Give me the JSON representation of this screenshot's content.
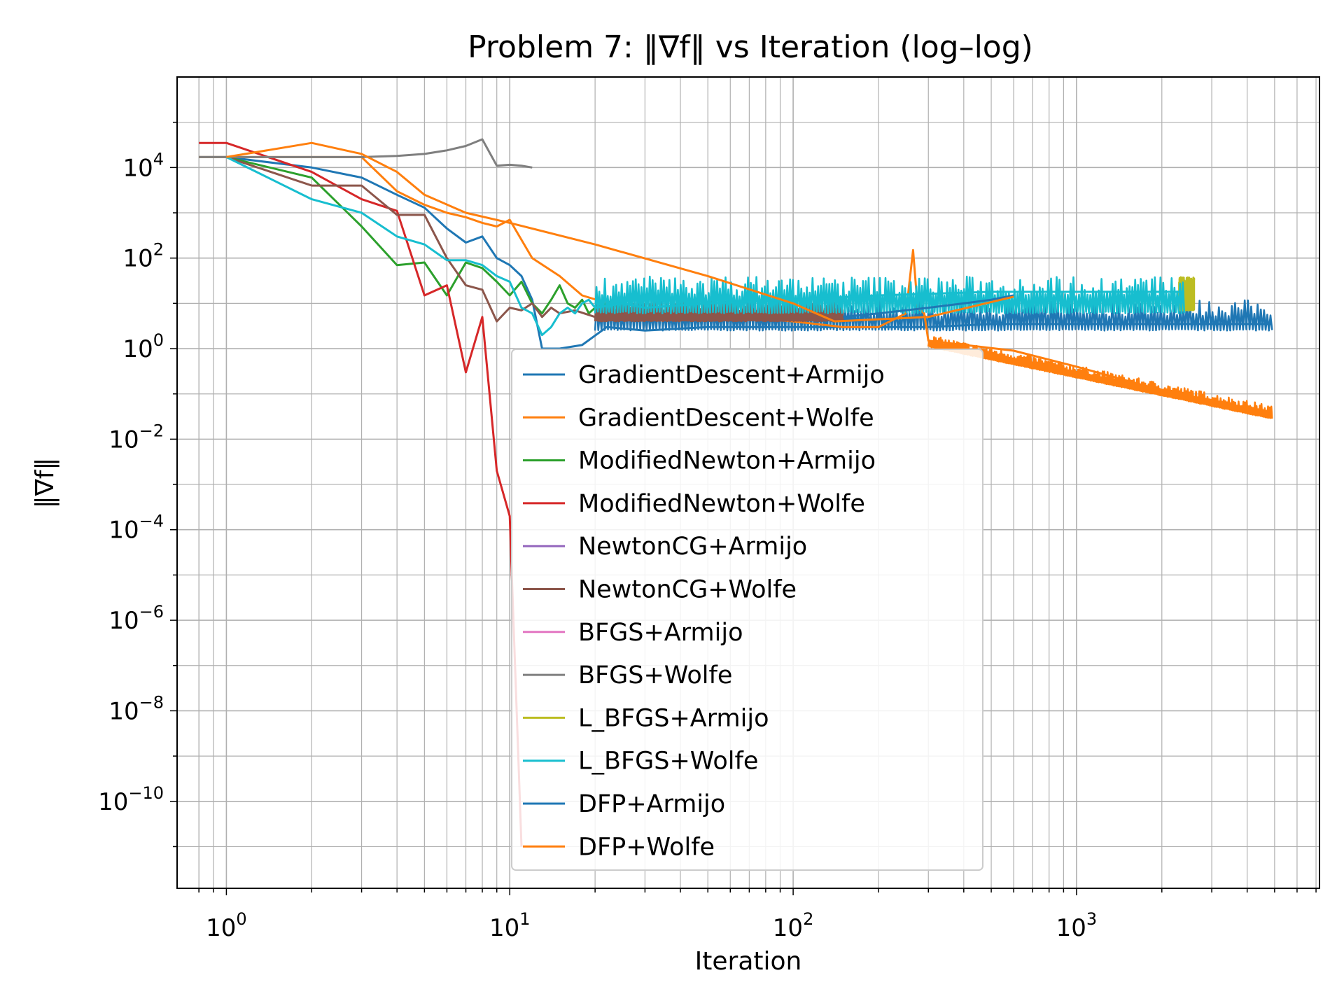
{
  "chart_data": {
    "type": "line",
    "title": "Problem 7: ‖∇f‖ vs Iteration (log–log)",
    "xlabel": "Iteration",
    "ylabel": "‖∇f‖",
    "xscale": "log",
    "yscale": "log",
    "xlim": [
      0.67,
      7200
    ],
    "ylim": [
      1.2e-12,
      1000000.0
    ],
    "grid": "on (major and minor)",
    "legend_placement": "center",
    "x_ticks": [
      {
        "value": 1,
        "base": "10",
        "exp": "0"
      },
      {
        "value": 10,
        "base": "10",
        "exp": "1"
      },
      {
        "value": 100,
        "base": "10",
        "exp": "2"
      },
      {
        "value": 1000,
        "base": "10",
        "exp": "3"
      }
    ],
    "y_ticks": [
      {
        "value": 10000.0,
        "base": "10",
        "exp": "4"
      },
      {
        "value": 100.0,
        "base": "10",
        "exp": "2"
      },
      {
        "value": 1,
        "base": "10",
        "exp": "0"
      },
      {
        "value": 0.01,
        "base": "10",
        "exp": "−2"
      },
      {
        "value": 0.0001,
        "base": "10",
        "exp": "−4"
      },
      {
        "value": 1e-06,
        "base": "10",
        "exp": "−6"
      },
      {
        "value": 1e-08,
        "base": "10",
        "exp": "−8"
      },
      {
        "value": 1e-10,
        "base": "10",
        "exp": "−10"
      }
    ],
    "series": [
      {
        "name": "GradientDescent+Armijo",
        "color": "#1f77b4",
        "x": [
          0,
          1,
          2,
          3,
          4,
          5,
          6,
          7,
          8,
          9,
          10,
          11,
          12,
          13,
          15,
          18,
          22,
          30,
          50,
          100,
          200,
          300,
          500,
          1000,
          2000,
          4900
        ],
        "y": [
          17000,
          17000,
          10000,
          6000,
          2500,
          1300,
          450,
          220,
          300,
          100,
          70,
          40,
          12,
          1,
          1,
          1.2,
          3,
          2.5,
          3,
          3,
          3,
          3,
          3.5,
          3.5,
          3.5,
          3.5
        ],
        "band": {
          "x_start": 20,
          "x_end": 4900,
          "low": 2.5,
          "high": 12
        }
      },
      {
        "name": "GradientDescent+Wolfe",
        "color": "#ff7f0e",
        "x": [
          0,
          1,
          2,
          3,
          4,
          5,
          6,
          7,
          8,
          9,
          10,
          12,
          15,
          18,
          25,
          40,
          100,
          150,
          200,
          250,
          265,
          275,
          290,
          300,
          600,
          1000,
          2000,
          4900
        ],
        "y": [
          17000,
          17000,
          17000,
          17000,
          3000,
          1500,
          1000,
          800,
          600,
          500,
          700,
          100,
          40,
          15,
          8,
          6,
          4,
          3,
          3,
          6,
          150,
          8,
          6,
          1.5,
          0.9,
          0.4,
          0.12,
          0.035
        ],
        "band": {
          "x_start": 300,
          "x_end": 4900,
          "low_start": 1.1,
          "high_start": 2.0,
          "low_end": 0.028,
          "high_end": 0.055
        }
      },
      {
        "name": "ModifiedNewton+Armijo",
        "color": "#2ca02c",
        "x": [
          1,
          2,
          3,
          4,
          5,
          6,
          7,
          8,
          9,
          10,
          11,
          12,
          13,
          14,
          15,
          16,
          17,
          18,
          19,
          20,
          22,
          25
        ],
        "y": [
          17000,
          6000,
          500,
          70,
          80,
          15,
          80,
          60,
          30,
          15,
          30,
          10,
          6,
          12,
          25,
          10,
          8,
          12,
          6,
          8,
          10,
          8
        ]
      },
      {
        "name": "ModifiedNewton+Wolfe",
        "color": "#d62728",
        "x": [
          0,
          1,
          2,
          3,
          4,
          5,
          6,
          7,
          8,
          9,
          10,
          11
        ],
        "y": [
          35000,
          35000,
          8000,
          2000,
          1100,
          15,
          25,
          0.3,
          5,
          0.002,
          0.0002,
          1e-11
        ]
      },
      {
        "name": "NewtonCG+Armijo",
        "color": "#9467bd",
        "x": [],
        "y": []
      },
      {
        "name": "NewtonCG+Wolfe",
        "color": "#8c564b",
        "x": [
          1,
          2,
          3,
          4,
          5,
          6,
          7,
          8,
          9,
          10,
          11,
          12,
          13,
          14,
          15,
          17,
          20,
          25,
          30,
          40,
          60,
          100,
          150
        ],
        "y": [
          17000,
          4000,
          4000,
          900,
          900,
          100,
          25,
          20,
          4,
          8,
          7,
          10,
          5,
          8,
          6,
          7,
          5,
          8,
          6,
          6,
          5,
          5,
          5
        ],
        "band": {
          "x_start": 20,
          "x_end": 150,
          "low": 4,
          "high": 12
        }
      },
      {
        "name": "BFGS+Armijo",
        "color": "#e377c2",
        "x": [],
        "y": []
      },
      {
        "name": "BFGS+Wolfe",
        "color": "#7f7f7f",
        "x": [
          0,
          1,
          2,
          3,
          4,
          5,
          6,
          7,
          8,
          9,
          10,
          11,
          12
        ],
        "y": [
          17000,
          17000,
          17000,
          17000,
          18000,
          20000,
          24000,
          30000,
          42000,
          11000,
          11500,
          11000,
          10000
        ]
      },
      {
        "name": "L_BFGS+Armijo",
        "color": "#bcbd22",
        "x": [
          2300,
          2400,
          2500,
          2600
        ],
        "y": [
          15,
          30,
          12,
          35
        ],
        "band": {
          "x_start": 2300,
          "x_end": 2600,
          "low": 7,
          "high": 38
        }
      },
      {
        "name": "L_BFGS+Wolfe",
        "color": "#17becf",
        "x": [
          1,
          2,
          3,
          4,
          5,
          6,
          7,
          8,
          9,
          10,
          11,
          12,
          13,
          14,
          15,
          16,
          17,
          18,
          19,
          20,
          25,
          30,
          50,
          100,
          200,
          500,
          1000,
          2400
        ],
        "y": [
          17000,
          2000,
          1000,
          300,
          200,
          90,
          90,
          70,
          40,
          30,
          8,
          6,
          2,
          3,
          6,
          8,
          6,
          10,
          12,
          8,
          10,
          8,
          10,
          12,
          15,
          18,
          18,
          18
        ],
        "band": {
          "x_start": 20,
          "x_end": 2400,
          "low": 6,
          "high": 40
        }
      },
      {
        "name": "DFP+Armijo",
        "color": "#1f77b4",
        "x": [
          150,
          200,
          300,
          400,
          500,
          600
        ],
        "y": [
          5,
          6,
          8,
          10,
          12,
          15
        ]
      },
      {
        "name": "DFP+Wolfe",
        "color": "#ff7f0e",
        "x": [
          1,
          2,
          3,
          4,
          5,
          7,
          10,
          20,
          50,
          100,
          140,
          300,
          600
        ],
        "y": [
          17000,
          35000,
          20000,
          8000,
          2500,
          1000,
          600,
          200,
          40,
          10,
          4,
          5,
          14
        ]
      }
    ]
  }
}
